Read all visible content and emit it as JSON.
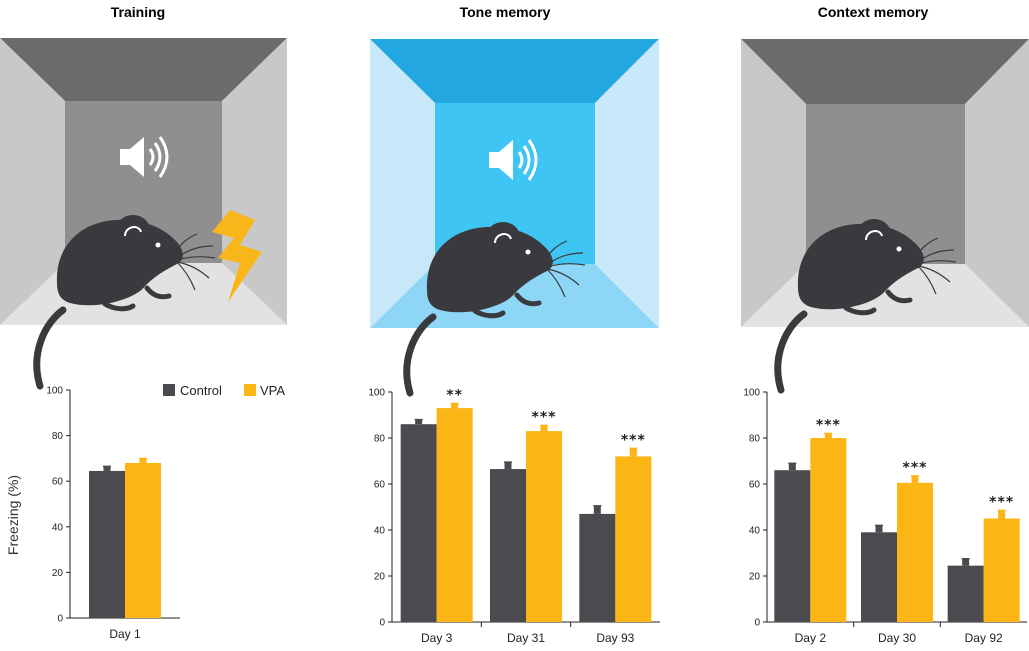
{
  "panels": [
    {
      "title": "Training",
      "room_color": "gray",
      "icons": [
        "speaker-icon",
        "lightning-icon",
        "mouse-icon"
      ]
    },
    {
      "title": "Tone memory",
      "room_color": "blue",
      "icons": [
        "speaker-icon",
        "mouse-icon"
      ]
    },
    {
      "title": "Context memory",
      "room_color": "gray",
      "icons": [
        "mouse-icon"
      ]
    }
  ],
  "colors": {
    "control": "#4a4a4f",
    "vpa": "#fbb514",
    "blue_back": "#3ec5f3",
    "blue_top": "#23a7e0",
    "blue_side": "#c6e8f8",
    "blue_floor": "#8dd6f5",
    "gray_back": "#8f8f8f",
    "gray_top": "#6b6b6b",
    "gray_side": "#c8c8c8",
    "gray_floor": "#e2e2e2"
  },
  "ylabel": "Freezing (%)",
  "chart_data": [
    {
      "type": "bar",
      "categories": [
        "Day 1"
      ],
      "series": [
        {
          "name": "Control",
          "values": [
            64.5
          ],
          "errors": [
            2
          ]
        },
        {
          "name": "VPA",
          "values": [
            68
          ],
          "errors": [
            2
          ]
        }
      ],
      "significance": [
        ""
      ],
      "ylim": [
        0,
        100
      ],
      "yticks": [
        "0",
        "20",
        "40",
        "60",
        "80",
        "100"
      ],
      "legend": "top-right",
      "grid": false
    },
    {
      "type": "bar",
      "categories": [
        "Day 3",
        "Day 31",
        "Day 93"
      ],
      "series": [
        {
          "name": "Control",
          "values": [
            86,
            66.5,
            47
          ],
          "errors": [
            2,
            3,
            3.5
          ]
        },
        {
          "name": "VPA",
          "values": [
            93,
            83,
            72
          ],
          "errors": [
            2,
            2.5,
            3.5
          ]
        }
      ],
      "significance": [
        "**",
        "***",
        "***"
      ],
      "ylim": [
        0,
        100
      ],
      "yticks": [
        "0",
        "20",
        "40",
        "60",
        "80",
        "100"
      ],
      "grid": false
    },
    {
      "type": "bar",
      "categories": [
        "Day 2",
        "Day 30",
        "Day 92"
      ],
      "series": [
        {
          "name": "Control",
          "values": [
            66,
            39,
            24.5
          ],
          "errors": [
            3,
            3,
            3
          ]
        },
        {
          "name": "VPA",
          "values": [
            80,
            60.5,
            45
          ],
          "errors": [
            2,
            3,
            3.5
          ]
        }
      ],
      "significance": [
        "***",
        "***",
        "***"
      ],
      "ylim": [
        0,
        100
      ],
      "yticks": [
        "0",
        "20",
        "40",
        "60",
        "80",
        "100"
      ],
      "grid": false
    }
  ]
}
